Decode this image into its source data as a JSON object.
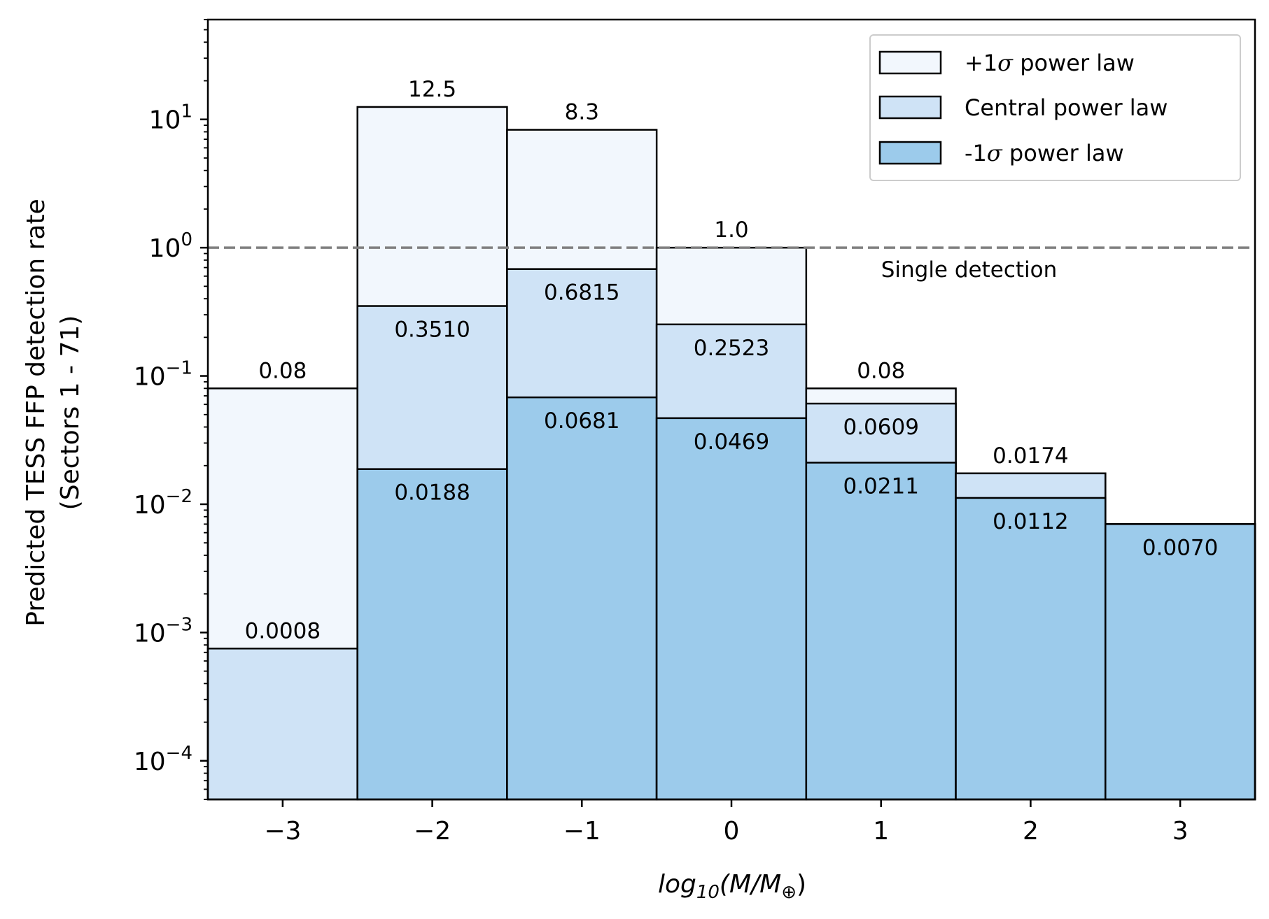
{
  "chart_data": {
    "type": "bar",
    "scale_y": "log",
    "ylim": [
      5e-05,
      60
    ],
    "xlim": [
      -3.5,
      3.5
    ],
    "xlabel_main": "log",
    "xlabel_sub": "10",
    "xlabel_rest": "(M/M",
    "xlabel_sub2": "⊕",
    "xlabel_close": ")",
    "ylabel_line1": "Predicted TESS FFP detection rate",
    "ylabel_line2": "(Sectors 1 - 71)",
    "x_ticks": [
      {
        "value": -3,
        "label": "−3"
      },
      {
        "value": -2,
        "label": "−2"
      },
      {
        "value": -1,
        "label": "−1"
      },
      {
        "value": 0,
        "label": "0"
      },
      {
        "value": 1,
        "label": "1"
      },
      {
        "value": 2,
        "label": "2"
      },
      {
        "value": 3,
        "label": "3"
      }
    ],
    "y_ticks": [
      {
        "value": 10,
        "base": "10",
        "exp": "1"
      },
      {
        "value": 1,
        "base": "10",
        "exp": "0"
      },
      {
        "value": 0.1,
        "base": "10",
        "exp": "−1"
      },
      {
        "value": 0.01,
        "base": "10",
        "exp": "−2"
      },
      {
        "value": 0.001,
        "base": "10",
        "exp": "−3"
      },
      {
        "value": 0.0001,
        "base": "10",
        "exp": "−4"
      }
    ],
    "bin_centers": [
      -3,
      -2,
      -1,
      0,
      1,
      2,
      3
    ],
    "bin_width": 1,
    "series": [
      {
        "name": "+1σ power law",
        "legend_prefix": "+1",
        "legend_suffix": " power law",
        "color": "#f2f7fd",
        "values": [
          0.08,
          12.5,
          8.3,
          1.0,
          0.08,
          0.0174,
          0.007
        ],
        "labels": [
          "0.08",
          "12.5",
          "8.3",
          "1.0",
          "0.08",
          "0.0174",
          ""
        ]
      },
      {
        "name": "Central power law",
        "legend_prefix": "Central power law",
        "legend_suffix": "",
        "color": "#cfe3f6",
        "values": [
          0.00075,
          0.351,
          0.6815,
          0.2523,
          0.0609,
          0.0174,
          0.007
        ],
        "labels": [
          "0.0008",
          "0.3510",
          "0.6815",
          "0.2523",
          "0.0609",
          "",
          ""
        ]
      },
      {
        "name": "-1σ power law",
        "legend_prefix": "-1",
        "legend_suffix": " power law",
        "color": "#9ccbeb",
        "values": [
          null,
          0.0188,
          0.0681,
          0.0469,
          0.0211,
          0.0112,
          0.007
        ],
        "labels": [
          "",
          "0.0188",
          "0.0681",
          "0.0469",
          "0.0211",
          "0.0112",
          "0.0070"
        ]
      }
    ],
    "reference_line": {
      "value": 1.0,
      "label": "Single detection",
      "color": "#808080"
    },
    "legend_position": "top-right",
    "grid": false
  }
}
